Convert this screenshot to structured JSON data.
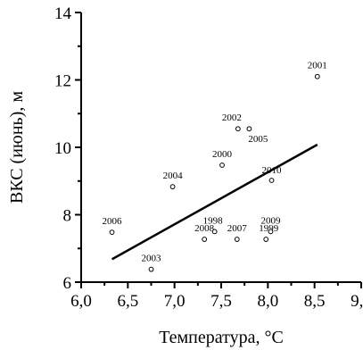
{
  "chart_data": {
    "type": "scatter",
    "xlabel": "Температура, °C",
    "ylabel": "ВКС (июнь), м",
    "xlim": [
      6.0,
      9.0
    ],
    "ylim": [
      6,
      14
    ],
    "x_ticks": [
      "6,0",
      "6,5",
      "7,0",
      "7,5",
      "8,0",
      "8,5",
      "9,0"
    ],
    "y_ticks": [
      "6",
      "8",
      "10",
      "12",
      "14"
    ],
    "grid": false,
    "points": [
      {
        "label": "2006",
        "x": 6.33,
        "y": 7.48
      },
      {
        "label": "2003",
        "x": 6.75,
        "y": 6.38
      },
      {
        "label": "2004",
        "x": 6.98,
        "y": 8.83
      },
      {
        "label": "2008",
        "x": 7.32,
        "y": 7.27
      },
      {
        "label": "1998",
        "x": 7.43,
        "y": 7.5
      },
      {
        "label": "2000",
        "x": 7.51,
        "y": 9.47
      },
      {
        "label": "2007",
        "x": 7.67,
        "y": 7.27
      },
      {
        "label": "2002",
        "x": 7.68,
        "y": 10.55
      },
      {
        "label": "2005",
        "x": 7.8,
        "y": 10.55
      },
      {
        "label": "1999",
        "x": 7.98,
        "y": 7.27
      },
      {
        "label": "2009",
        "x": 8.03,
        "y": 7.5
      },
      {
        "label": "2010",
        "x": 8.04,
        "y": 9.02
      },
      {
        "label": "2001",
        "x": 8.53,
        "y": 12.1
      }
    ],
    "trendline": {
      "x": [
        6.33,
        8.53
      ],
      "y": [
        6.68,
        10.08
      ]
    }
  }
}
